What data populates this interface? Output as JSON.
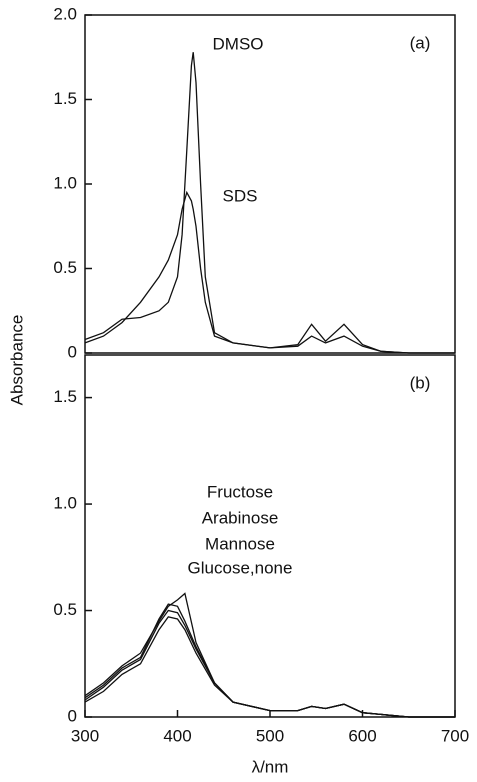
{
  "chart_data": [
    {
      "type": "line",
      "panel_label": "(a)",
      "ylabel": "Absorbance",
      "x": [
        300,
        320,
        340,
        360,
        380,
        390,
        400,
        405,
        410,
        415,
        417,
        420,
        425,
        430,
        440,
        460,
        500,
        530,
        545,
        560,
        580,
        600,
        620,
        650,
        700
      ],
      "series": [
        {
          "name": "DMSO",
          "color": "#111111",
          "values": [
            0.08,
            0.12,
            0.2,
            0.21,
            0.25,
            0.3,
            0.45,
            0.7,
            1.2,
            1.7,
            1.78,
            1.6,
            1.0,
            0.45,
            0.12,
            0.06,
            0.03,
            0.05,
            0.17,
            0.07,
            0.17,
            0.05,
            0.01,
            0,
            0
          ]
        },
        {
          "name": "SDS",
          "color": "#111111",
          "values": [
            0.06,
            0.1,
            0.18,
            0.3,
            0.45,
            0.55,
            0.7,
            0.85,
            0.95,
            0.9,
            0.85,
            0.75,
            0.5,
            0.3,
            0.1,
            0.06,
            0.03,
            0.04,
            0.1,
            0.06,
            0.1,
            0.04,
            0.01,
            0,
            0
          ]
        }
      ],
      "xlim": [
        300,
        700
      ],
      "ylim": [
        0,
        2
      ],
      "yticks": [
        0,
        {
          "value": 0.5,
          "label": "0.5"
        },
        {
          "value": 1,
          "label": "1.0"
        },
        {
          "value": 1.5,
          "label": "1.5"
        },
        {
          "value": 2,
          "label": "2.0"
        }
      ]
    },
    {
      "type": "line",
      "panel_label": "(b)",
      "xlabel": "λ/nm",
      "x": [
        300,
        320,
        340,
        360,
        380,
        390,
        400,
        408,
        420,
        440,
        460,
        500,
        530,
        545,
        560,
        580,
        600,
        650,
        700
      ],
      "series": [
        {
          "name": "Fructose",
          "color": "#111111",
          "values": [
            0.1,
            0.16,
            0.24,
            0.3,
            0.45,
            0.52,
            0.55,
            0.58,
            0.35,
            0.16,
            0.07,
            0.03,
            0.03,
            0.05,
            0.04,
            0.06,
            0.02,
            0,
            0
          ]
        },
        {
          "name": "Arabinose",
          "color": "#111111",
          "values": [
            0.09,
            0.15,
            0.23,
            0.28,
            0.46,
            0.53,
            0.52,
            0.45,
            0.33,
            0.16,
            0.07,
            0.03,
            0.03,
            0.05,
            0.04,
            0.06,
            0.02,
            0,
            0
          ]
        },
        {
          "name": "Mannose",
          "color": "#111111",
          "values": [
            0.08,
            0.14,
            0.22,
            0.27,
            0.44,
            0.5,
            0.49,
            0.43,
            0.32,
            0.16,
            0.07,
            0.03,
            0.03,
            0.05,
            0.04,
            0.06,
            0.02,
            0,
            0
          ]
        },
        {
          "name": "Glucose,none",
          "color": "#111111",
          "values": [
            0.07,
            0.12,
            0.2,
            0.25,
            0.41,
            0.47,
            0.46,
            0.41,
            0.3,
            0.15,
            0.07,
            0.03,
            0.03,
            0.05,
            0.04,
            0.06,
            0.02,
            0,
            0
          ]
        }
      ],
      "xlim": [
        300,
        700
      ],
      "ylim": [
        0,
        1.7
      ],
      "xticks": [
        300,
        400,
        500,
        600,
        700
      ],
      "yticks": [
        0,
        {
          "value": 0.5,
          "label": "0.5"
        },
        {
          "value": 1,
          "label": "1.0"
        },
        {
          "value": 1.5,
          "label": "1.5"
        }
      ]
    }
  ]
}
